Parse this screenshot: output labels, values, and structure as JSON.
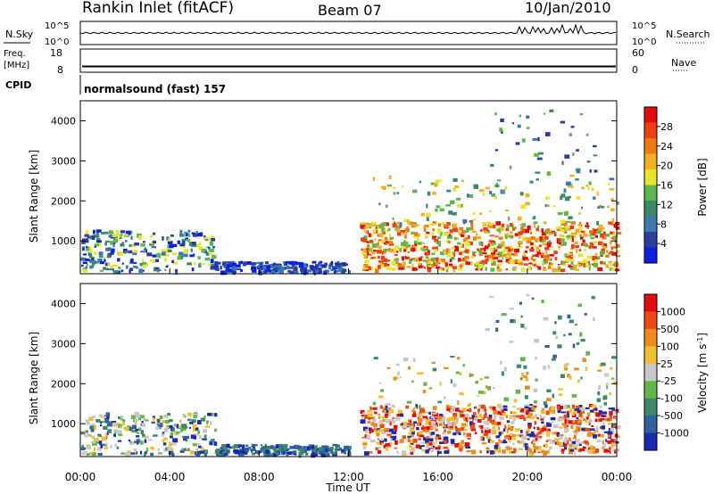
{
  "header": {
    "station": "Rankin Inlet (fitACF)",
    "beam": "Beam 07",
    "date": "10/Jan/2010"
  },
  "noise_panel": {
    "left_label": "N.Sky",
    "left_ticks": [
      "10^5",
      "10^0"
    ],
    "right_label": "N.Search",
    "right_ticks": [
      "10^5",
      "10^0"
    ]
  },
  "freq_panel": {
    "left_label_line1": "Freq.",
    "left_label_line2": "[MHz]",
    "left_ticks": [
      "18",
      "8"
    ],
    "right_label": "Nave",
    "right_ticks": [
      "60",
      "0"
    ],
    "freq_value": 10.5
  },
  "cpid": {
    "label": "CPID",
    "value": "normalsound (fast) 157"
  },
  "colors": {
    "power": [
      "#0a1ee6",
      "#2b3ea0",
      "#3a78b0",
      "#3a8a6a",
      "#5bb84a",
      "#e6e628",
      "#f2b020",
      "#f07a10",
      "#f04010",
      "#e60a0a"
    ],
    "velocity": [
      "#1a2ab0",
      "#3060a0",
      "#3a8a6a",
      "#60b848",
      "#c8c8c8",
      "#f0c030",
      "#f08a18",
      "#f04a10",
      "#e60a0a"
    ]
  },
  "chart_data": [
    {
      "type": "heatmap",
      "name": "power",
      "ylabel": "Slant Range [km]",
      "xlabel": "Time UT",
      "x_ticks": [
        "00:00",
        "04:00",
        "08:00",
        "12:00",
        "16:00",
        "20:00",
        "00:00"
      ],
      "xlim_hours": [
        0,
        24
      ],
      "y_ticks": [
        "1000",
        "2000",
        "3000",
        "4000"
      ],
      "ylim": [
        180,
        4500
      ],
      "colorbar": {
        "label": "Power [dB]",
        "ticks": [
          "28",
          "24",
          "20",
          "16",
          "12",
          "8",
          "4"
        ],
        "range": [
          0,
          30
        ]
      }
    },
    {
      "type": "heatmap",
      "name": "velocity",
      "ylabel": "Slant Range [km]",
      "xlabel": "Time UT",
      "x_ticks": [
        "00:00",
        "04:00",
        "08:00",
        "12:00",
        "16:00",
        "20:00",
        "00:00"
      ],
      "xlim_hours": [
        0,
        24
      ],
      "y_ticks": [
        "1000",
        "2000",
        "3000",
        "4000"
      ],
      "ylim": [
        180,
        4500
      ],
      "colorbar": {
        "label_main": "Velocity [m s",
        "label_sup": "-1",
        "label_end": "]",
        "ticks": [
          "1000",
          "500",
          "100",
          "25",
          "-25",
          "-100",
          "-500",
          "-1000"
        ]
      }
    }
  ],
  "xaxis": {
    "title": "Time UT",
    "ticks": [
      "00:00",
      "04:00",
      "08:00",
      "12:00",
      "16:00",
      "20:00",
      "00:00"
    ]
  }
}
